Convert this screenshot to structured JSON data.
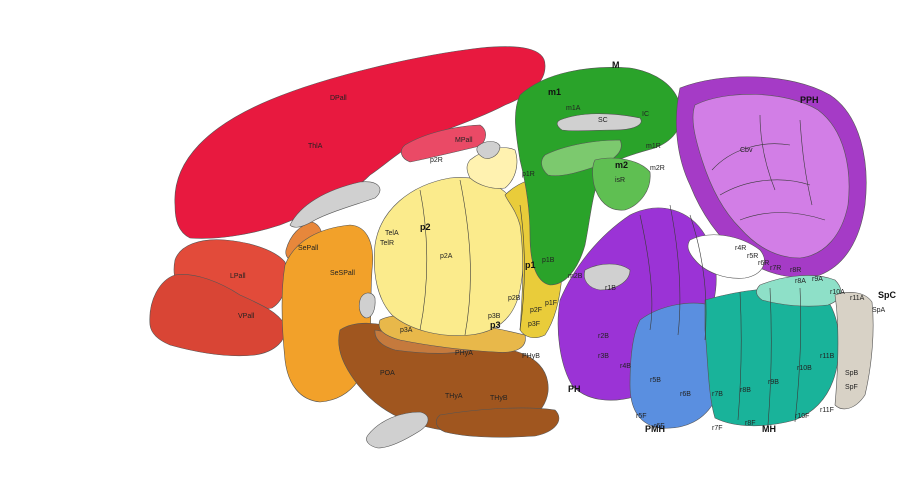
{
  "colors": {
    "pallium": "#e8193f",
    "pallium_lateral": "#e24b3a",
    "pallium_ventral": "#d94535",
    "subpallium": "#f2a12a",
    "hypothalamus": "#a0561f",
    "hypothalamus_light": "#c57a3d",
    "diencephalon_p2": "#fbeb8c",
    "diencephalon_p1": "#e9cc3a",
    "diencephalon_p3": "#e8b84a",
    "midbrain": "#2aa32a",
    "midbrain_light": "#7cc96e",
    "cerebellum": "#d27ee6",
    "cerebellum_dark": "#a53bc6",
    "prepontine": "#9b33d6",
    "pontine": "#5a8fe0",
    "medulla": "#19b39a",
    "medulla_light": "#8ee0c8",
    "spinal": "#d8d2c6",
    "ventricle": "#d0d0d0"
  },
  "labels": {
    "big": [
      {
        "text": "M",
        "id": "label-m"
      },
      {
        "text": "PPH",
        "id": "label-pph"
      },
      {
        "text": "m1",
        "id": "label-m1"
      },
      {
        "text": "m2",
        "id": "label-m2"
      },
      {
        "text": "p2",
        "id": "label-p2"
      },
      {
        "text": "p1",
        "id": "label-p1"
      },
      {
        "text": "p3",
        "id": "label-p3"
      },
      {
        "text": "PH",
        "id": "label-ph"
      },
      {
        "text": "PMH",
        "id": "label-pmh"
      },
      {
        "text": "MH",
        "id": "label-mh"
      },
      {
        "text": "SpC",
        "id": "label-spc"
      }
    ],
    "region": [
      {
        "text": "DPall"
      },
      {
        "text": "MPall"
      },
      {
        "text": "LPall"
      },
      {
        "text": "VPall"
      },
      {
        "text": "SePall"
      },
      {
        "text": "SeSPall"
      },
      {
        "text": "POA"
      },
      {
        "text": "THyA"
      },
      {
        "text": "THyB"
      },
      {
        "text": "PHyA"
      },
      {
        "text": "PHyB"
      },
      {
        "text": "Cbv"
      },
      {
        "text": "m1A"
      },
      {
        "text": "m2B"
      },
      {
        "text": "p2A"
      },
      {
        "text": "p1B"
      },
      {
        "text": "p3A"
      },
      {
        "text": "p3B"
      },
      {
        "text": "p2B"
      },
      {
        "text": "p1F"
      },
      {
        "text": "p2F"
      },
      {
        "text": "p3F"
      },
      {
        "text": "isR"
      },
      {
        "text": "r1B"
      },
      {
        "text": "r2B"
      },
      {
        "text": "r3B"
      },
      {
        "text": "r4B"
      },
      {
        "text": "r5B"
      },
      {
        "text": "r6B"
      },
      {
        "text": "r7B"
      },
      {
        "text": "r8B"
      },
      {
        "text": "r9B"
      },
      {
        "text": "r10B"
      },
      {
        "text": "r11B"
      },
      {
        "text": "r8A"
      },
      {
        "text": "r9A"
      },
      {
        "text": "r10A"
      },
      {
        "text": "r11A"
      },
      {
        "text": "SpA"
      },
      {
        "text": "SpB"
      },
      {
        "text": "SpF"
      },
      {
        "text": "r5F"
      },
      {
        "text": "r6F"
      },
      {
        "text": "r7F"
      },
      {
        "text": "r8F"
      },
      {
        "text": "r10F"
      },
      {
        "text": "r11F"
      },
      {
        "text": "p2R"
      },
      {
        "text": "p1R"
      },
      {
        "text": "m1R"
      },
      {
        "text": "m2R"
      },
      {
        "text": "r4R"
      },
      {
        "text": "r5R"
      },
      {
        "text": "r6R"
      },
      {
        "text": "r7R"
      },
      {
        "text": "r8R"
      },
      {
        "text": "SC"
      },
      {
        "text": "IC"
      },
      {
        "text": "TelA"
      },
      {
        "text": "TelR"
      },
      {
        "text": "ThlA"
      }
    ]
  }
}
